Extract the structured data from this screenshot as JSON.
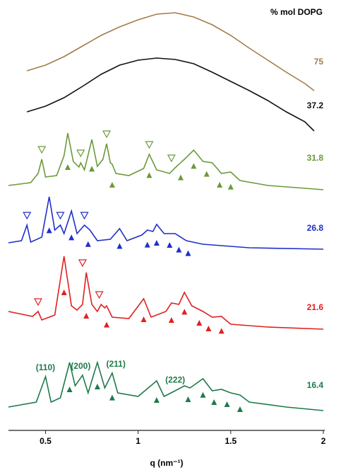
{
  "chart_data": {
    "type": "line",
    "legend_title": "% mol DOPG",
    "x_label": "q (nm⁻¹)",
    "xlim": [
      0.3,
      2
    ],
    "xticks": [
      0.5,
      1,
      1.5,
      2
    ],
    "ylim": [
      0,
      590
    ],
    "series": [
      {
        "name": "75",
        "color": "#a47c48",
        "x": [
          0.4,
          0.5,
          0.6,
          0.7,
          0.8,
          0.9,
          1.0,
          1.1,
          1.2,
          1.3,
          1.4,
          1.5,
          1.6,
          1.7,
          1.8,
          1.9,
          1.95
        ],
        "values": [
          500,
          508,
          520,
          535,
          550,
          562,
          572,
          580,
          582,
          576,
          565,
          550,
          532,
          515,
          498,
          482,
          472
        ],
        "open_markers": [],
        "filled_markers": []
      },
      {
        "name": "37.2",
        "color": "#111111",
        "x": [
          0.4,
          0.5,
          0.6,
          0.7,
          0.8,
          0.9,
          1.0,
          1.1,
          1.2,
          1.3,
          1.4,
          1.5,
          1.6,
          1.7,
          1.8,
          1.9,
          1.95
        ],
        "values": [
          442,
          450,
          462,
          478,
          495,
          508,
          515,
          518,
          516,
          510,
          498,
          485,
          472,
          458,
          442,
          428,
          415
        ],
        "open_markers": [],
        "filled_markers": []
      },
      {
        "name": "31.8",
        "color": "#6a9a3a",
        "x": [
          0.3,
          0.42,
          0.46,
          0.48,
          0.5,
          0.56,
          0.6,
          0.62,
          0.65,
          0.68,
          0.69,
          0.71,
          0.75,
          0.78,
          0.81,
          0.83,
          0.85,
          0.86,
          0.88,
          0.95,
          1.03,
          1.06,
          1.1,
          1.17,
          1.2,
          1.25,
          1.3,
          1.35,
          1.4,
          1.45,
          1.5,
          1.55,
          1.7,
          2.0
        ],
        "values": [
          338,
          342,
          355,
          375,
          350,
          352,
          380,
          412,
          372,
          364,
          370,
          360,
          403,
          365,
          375,
          397,
          370,
          368,
          355,
          352,
          362,
          382,
          360,
          355,
          363,
          375,
          388,
          372,
          370,
          355,
          357,
          345,
          338,
          332
        ],
        "open_markers": [
          0.48,
          0.69,
          0.83,
          1.06,
          1.18
        ],
        "filled_markers": [
          0.62,
          0.75,
          0.86,
          1.06,
          1.23,
          1.3,
          1.37,
          1.44,
          1.5
        ]
      },
      {
        "name": "26.8",
        "color": "#1f2fc8",
        "x": [
          0.3,
          0.37,
          0.4,
          0.42,
          0.48,
          0.52,
          0.55,
          0.58,
          0.6,
          0.64,
          0.67,
          0.71,
          0.74,
          0.78,
          0.85,
          0.9,
          0.94,
          1.02,
          1.05,
          1.08,
          1.1,
          1.14,
          1.2,
          1.26,
          1.35,
          1.6,
          2.0
        ],
        "values": [
          257,
          260,
          282,
          258,
          265,
          322,
          275,
          282,
          270,
          302,
          270,
          282,
          275,
          260,
          262,
          277,
          260,
          268,
          275,
          273,
          283,
          270,
          270,
          260,
          255,
          250,
          248
        ],
        "open_markers": [
          0.4,
          0.58,
          0.71
        ],
        "filled_markers": [
          0.52,
          0.64,
          0.73,
          0.9,
          1.05,
          1.1,
          1.17,
          1.22,
          1.27
        ]
      },
      {
        "name": "21.6",
        "color": "#e02020",
        "x": [
          0.3,
          0.43,
          0.46,
          0.48,
          0.55,
          0.6,
          0.64,
          0.67,
          0.7,
          0.72,
          0.75,
          0.78,
          0.8,
          0.82,
          0.83,
          0.86,
          0.95,
          1.03,
          1.07,
          1.15,
          1.18,
          1.22,
          1.25,
          1.29,
          1.35,
          1.4,
          1.45,
          1.5,
          1.7,
          2.0
        ],
        "values": [
          160,
          153,
          160,
          148,
          155,
          238,
          168,
          162,
          170,
          215,
          170,
          160,
          170,
          165,
          168,
          152,
          150,
          178,
          152,
          160,
          172,
          170,
          187,
          168,
          160,
          152,
          153,
          142,
          138,
          135
        ],
        "open_markers": [
          0.46,
          0.7,
          0.79
        ],
        "filled_markers": [
          0.6,
          0.72,
          0.83,
          1.03,
          1.18,
          1.25,
          1.33,
          1.38,
          1.45
        ]
      },
      {
        "name": "16.4",
        "color": "#1e7a4a",
        "x": [
          0.3,
          0.45,
          0.5,
          0.53,
          0.58,
          0.63,
          0.66,
          0.7,
          0.73,
          0.78,
          0.82,
          0.86,
          0.89,
          1.0,
          1.1,
          1.14,
          1.2,
          1.25,
          1.28,
          1.35,
          1.4,
          1.45,
          1.5,
          1.55,
          1.6,
          1.8,
          2.0
        ],
        "values": [
          25,
          32,
          68,
          32,
          38,
          88,
          55,
          70,
          45,
          88,
          52,
          73,
          45,
          40,
          62,
          40,
          48,
          55,
          52,
          65,
          48,
          50,
          45,
          42,
          32,
          25,
          20
        ],
        "open_markers": [],
        "filled_markers": [
          0.63,
          0.78,
          0.86,
          1.1,
          1.27,
          1.35,
          1.41,
          1.48,
          1.55
        ]
      }
    ],
    "annotations": [
      {
        "text": "(110)",
        "x": 0.5
      },
      {
        "text": "(200)",
        "x": 0.69
      },
      {
        "text": "(211)",
        "x": 0.88
      },
      {
        "text": "(222)",
        "x": 1.2
      }
    ]
  }
}
